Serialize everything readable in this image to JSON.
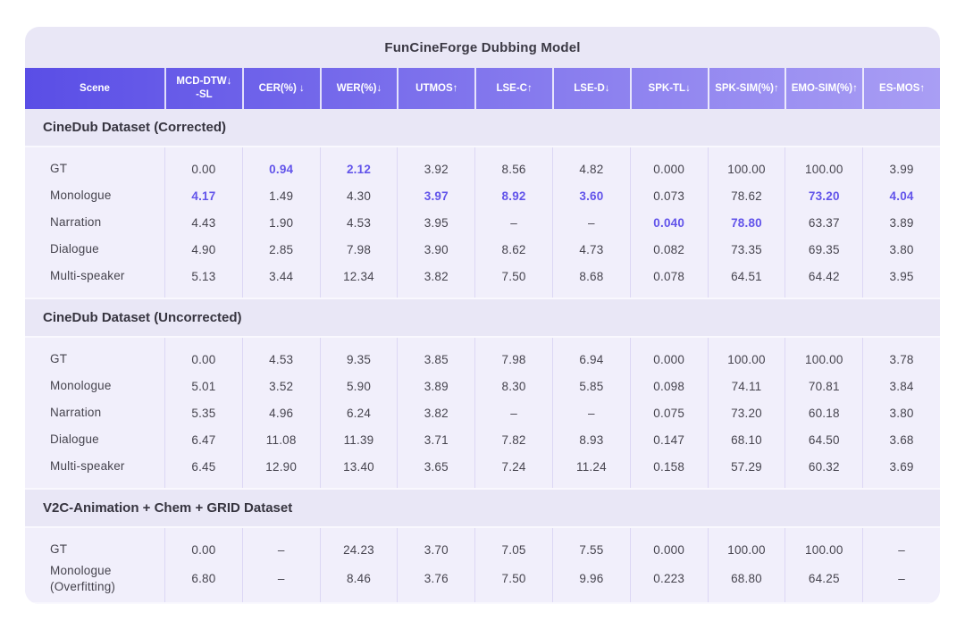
{
  "colors": {
    "grad-start": "#5a4ee6",
    "grad-end": "#a99ef4",
    "hl": "#6254ea",
    "card-bg": "#e9e7f6",
    "block-bg": "#f1effb",
    "divider": "#dcd7f4"
  },
  "chart_data": {
    "type": "table",
    "title": "FunCineForge Dubbing Model",
    "columns": [
      {
        "label": "Scene"
      },
      {
        "label": "MCD-DTW↓\n-SL"
      },
      {
        "label": "CER(%) ↓"
      },
      {
        "label": "WER(%)↓"
      },
      {
        "label": "UTMOS↑"
      },
      {
        "label": "LSE-C↑"
      },
      {
        "label": "LSE-D↓"
      },
      {
        "label": "SPK-TL↓"
      },
      {
        "label": "SPK-SIM(%)↑"
      },
      {
        "label": "EMO-SIM(%)↑"
      },
      {
        "label": "ES-MOS↑"
      }
    ],
    "sections": [
      {
        "title": "CineDub Dataset (Corrected)",
        "rows": [
          {
            "scene": "GT",
            "values": [
              "0.00",
              "0.94",
              "2.12",
              "3.92",
              "8.56",
              "4.82",
              "0.000",
              "100.00",
              "100.00",
              "3.99"
            ],
            "hl": [
              1,
              2
            ]
          },
          {
            "scene": "Monologue",
            "values": [
              "4.17",
              "1.49",
              "4.30",
              "3.97",
              "8.92",
              "3.60",
              "0.073",
              "78.62",
              "73.20",
              "4.04"
            ],
            "hl": [
              0,
              3,
              4,
              5,
              8,
              9
            ]
          },
          {
            "scene": "Narration",
            "values": [
              "4.43",
              "1.90",
              "4.53",
              "3.95",
              "–",
              "–",
              "0.040",
              "78.80",
              "63.37",
              "3.89"
            ],
            "hl": [
              6,
              7
            ]
          },
          {
            "scene": "Dialogue",
            "values": [
              "4.90",
              "2.85",
              "7.98",
              "3.90",
              "8.62",
              "4.73",
              "0.082",
              "73.35",
              "69.35",
              "3.80"
            ],
            "hl": []
          },
          {
            "scene": "Multi-speaker",
            "values": [
              "5.13",
              "3.44",
              "12.34",
              "3.82",
              "7.50",
              "8.68",
              "0.078",
              "64.51",
              "64.42",
              "3.95"
            ],
            "hl": []
          }
        ]
      },
      {
        "title": "CineDub Dataset (Uncorrected)",
        "rows": [
          {
            "scene": "GT",
            "values": [
              "0.00",
              "4.53",
              "9.35",
              "3.85",
              "7.98",
              "6.94",
              "0.000",
              "100.00",
              "100.00",
              "3.78"
            ],
            "hl": []
          },
          {
            "scene": "Monologue",
            "values": [
              "5.01",
              "3.52",
              "5.90",
              "3.89",
              "8.30",
              "5.85",
              "0.098",
              "74.11",
              "70.81",
              "3.84"
            ],
            "hl": []
          },
          {
            "scene": "Narration",
            "values": [
              "5.35",
              "4.96",
              "6.24",
              "3.82",
              "–",
              "–",
              "0.075",
              "73.20",
              "60.18",
              "3.80"
            ],
            "hl": []
          },
          {
            "scene": "Dialogue",
            "values": [
              "6.47",
              "11.08",
              "11.39",
              "3.71",
              "7.82",
              "8.93",
              "0.147",
              "68.10",
              "64.50",
              "3.68"
            ],
            "hl": []
          },
          {
            "scene": "Multi-speaker",
            "values": [
              "6.45",
              "12.90",
              "13.40",
              "3.65",
              "7.24",
              "11.24",
              "0.158",
              "57.29",
              "60.32",
              "3.69"
            ],
            "hl": []
          }
        ]
      },
      {
        "title": "V2C-Animation + Chem + GRID Dataset",
        "rows": [
          {
            "scene": "GT",
            "values": [
              "0.00",
              "–",
              "24.23",
              "3.70",
              "7.05",
              "7.55",
              "0.000",
              "100.00",
              "100.00",
              "–"
            ],
            "hl": []
          },
          {
            "scene": "Monologue\n(Overfitting)",
            "values": [
              "6.80",
              "–",
              "8.46",
              "3.76",
              "7.50",
              "9.96",
              "0.223",
              "68.80",
              "64.25",
              "–"
            ],
            "hl": []
          }
        ]
      }
    ]
  }
}
